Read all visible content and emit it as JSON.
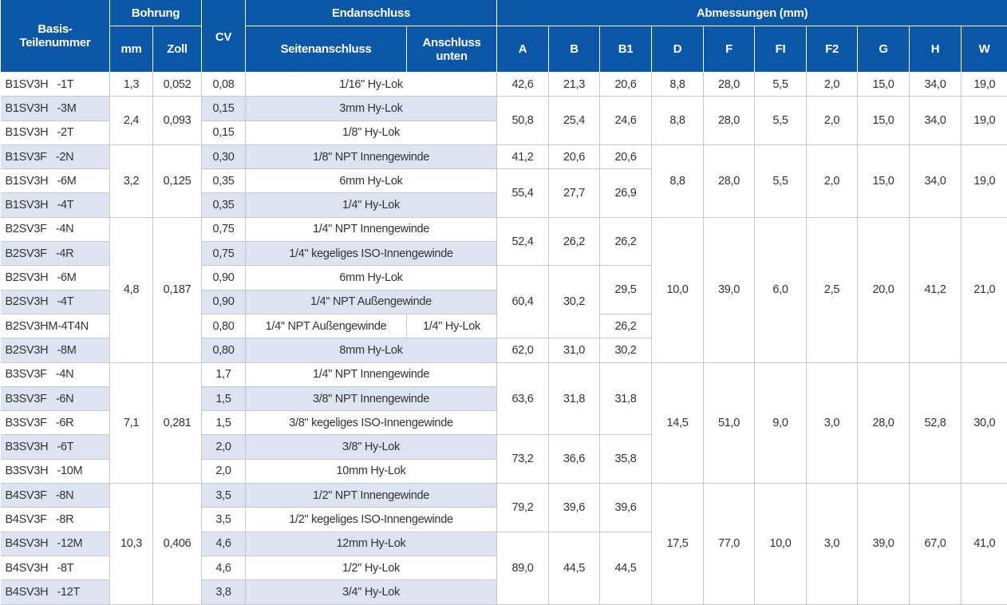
{
  "header": {
    "part": "Basis-\nTeilenummer",
    "bore": "Bohrung",
    "bore_mm": "mm",
    "bore_inch": "Zoll",
    "cv": "CV",
    "end": "Endanschluss",
    "end_side": "Seitenanschluss",
    "end_bottom": "Anschluss unten",
    "dims": "Abmessungen (mm)",
    "dim_cols": [
      "A",
      "B",
      "B1",
      "D",
      "F",
      "FI",
      "F2",
      "G",
      "H",
      "W"
    ]
  },
  "colors": {
    "header_bg": "#0a57a8",
    "row_shade": "#dde3f1"
  },
  "rows": [
    {
      "part": "B1SV3H   -1T",
      "cv": "0,08",
      "side": "1/16\" Hy-Lok"
    },
    {
      "part": "B1SV3H   -3M",
      "cv": "0,15",
      "side": "3mm Hy-Lok"
    },
    {
      "part": "B1SV3H   -2T",
      "cv": "0,15",
      "side": "1/8\" Hy-Lok"
    },
    {
      "part": "B1SV3F   -2N",
      "cv": "0,30",
      "side": "1/8\" NPT Innengewinde"
    },
    {
      "part": "B1SV3H   -6M",
      "cv": "0,35",
      "side": "6mm Hy-Lok"
    },
    {
      "part": "B1SV3H   -4T",
      "cv": "0,35",
      "side": "1/4\" Hy-Lok"
    },
    {
      "part": "B2SV3F   -4N",
      "cv": "0,75",
      "side": "1/4\" NPT Innengewinde"
    },
    {
      "part": "B2SV3F   -4R",
      "cv": "0,75",
      "side": "1/4\" kegeliges ISO-Innengewinde"
    },
    {
      "part": "B2SV3H   -6M",
      "cv": "0,90",
      "side": "6mm Hy-Lok"
    },
    {
      "part": "B2SV3H   -4T",
      "cv": "0,90",
      "side": "1/4\" NPT Außengewinde"
    },
    {
      "part": "B2SV3HM-4T4N",
      "cv": "0,80",
      "side": "1/4\" NPT Außengewinde",
      "bottom": "1/4\" Hy-Lok"
    },
    {
      "part": "B2SV3H   -8M",
      "cv": "0,80",
      "side": "8mm Hy-Lok"
    },
    {
      "part": "B3SV3F   -4N",
      "cv": "1,7",
      "side": "1/4\" NPT Innengewinde"
    },
    {
      "part": "B3SV3F   -6N",
      "cv": "1,5",
      "side": "3/8\" NPT Innengewinde"
    },
    {
      "part": "B3SV3F   -6R",
      "cv": "1,5",
      "side": "3/8\" kegeliges ISO-Innengewinde"
    },
    {
      "part": "B3SV3H   -6T",
      "cv": "2,0",
      "side": "3/8\" Hy-Lok"
    },
    {
      "part": "B3SV3H   -10M",
      "cv": "2,0",
      "side": "10mm Hy-Lok"
    },
    {
      "part": "B4SV3F   -8N",
      "cv": "3,5",
      "side": "1/2\" NPT Innengewinde"
    },
    {
      "part": "B4SV3F   -8R",
      "cv": "3,5",
      "side": "1/2\" kegeliges ISO-Innengewinde"
    },
    {
      "part": "B4SV3H   -12M",
      "cv": "4,6",
      "side": "12mm Hy-Lok"
    },
    {
      "part": "B4SV3H   -8T",
      "cv": "4,6",
      "side": "1/2\" Hy-Lok"
    },
    {
      "part": "B4SV3H   -12T",
      "cv": "3,8",
      "side": "3/4\" Hy-Lok"
    }
  ],
  "bore_groups": [
    {
      "span": 1,
      "mm": "1,3",
      "inch": "0,052"
    },
    {
      "span": 2,
      "mm": "2,4",
      "inch": "0,093"
    },
    {
      "span": 3,
      "mm": "3,2",
      "inch": "0,125"
    },
    {
      "span": 6,
      "mm": "4,8",
      "inch": "0,187"
    },
    {
      "span": 5,
      "mm": "7,1",
      "inch": "0,281"
    },
    {
      "span": 5,
      "mm": "10,3",
      "inch": "0,406"
    }
  ],
  "ab_groups": [
    {
      "span": 1,
      "A": "42,6",
      "B": "21,3"
    },
    {
      "span": 2,
      "A": "50,8",
      "B": "25,4"
    },
    {
      "span": 1,
      "A": "41,2",
      "B": "20,6"
    },
    {
      "span": 2,
      "A": "55,4",
      "B": "27,7"
    },
    {
      "span": 2,
      "A": "52,4",
      "B": "26,2"
    },
    {
      "span": 3,
      "A": "60,4",
      "B": "30,2"
    },
    {
      "span": 1,
      "A": "62,0",
      "B": "31,0"
    },
    {
      "span": 3,
      "A": "63,6",
      "B": "31,8"
    },
    {
      "span": 2,
      "A": "73,2",
      "B": "36,6"
    },
    {
      "span": 2,
      "A": "79,2",
      "B": "39,6"
    },
    {
      "span": 3,
      "A": "89,0",
      "B": "44,5"
    }
  ],
  "b1_groups": [
    {
      "span": 1,
      "B1": "20,6"
    },
    {
      "span": 2,
      "B1": "24,6"
    },
    {
      "span": 1,
      "B1": "20,6"
    },
    {
      "span": 2,
      "B1": "26,9"
    },
    {
      "span": 2,
      "B1": "26,2"
    },
    {
      "span": 2,
      "B1": "29,5"
    },
    {
      "span": 1,
      "B1": "26,2"
    },
    {
      "span": 1,
      "B1": "30,2"
    },
    {
      "span": 3,
      "B1": "31,8"
    },
    {
      "span": 2,
      "B1": "35,8"
    },
    {
      "span": 2,
      "B1": "39,6"
    },
    {
      "span": 3,
      "B1": "44,5"
    }
  ],
  "dim_groups": [
    {
      "span": 1,
      "D": "8,8",
      "F": "28,0",
      "FI": "5,5",
      "F2": "2,0",
      "G": "15,0",
      "H": "34,0",
      "W": "19,0"
    },
    {
      "span": 2,
      "D": "8,8",
      "F": "28,0",
      "FI": "5,5",
      "F2": "2,0",
      "G": "15,0",
      "H": "34,0",
      "W": "19,0"
    },
    {
      "span": 3,
      "D": "8,8",
      "F": "28,0",
      "FI": "5,5",
      "F2": "2,0",
      "G": "15,0",
      "H": "34,0",
      "W": "19,0"
    },
    {
      "span": 6,
      "D": "10,0",
      "F": "39,0",
      "FI": "6,0",
      "F2": "2,5",
      "G": "20,0",
      "H": "41,2",
      "W": "21,0"
    },
    {
      "span": 5,
      "D": "14,5",
      "F": "51,0",
      "FI": "9,0",
      "F2": "3,0",
      "G": "28,0",
      "H": "52,8",
      "W": "30,0"
    },
    {
      "span": 5,
      "D": "17,5",
      "F": "77,0",
      "FI": "10,0",
      "F2": "3,0",
      "G": "39,0",
      "H": "67,0",
      "W": "41,0"
    }
  ]
}
